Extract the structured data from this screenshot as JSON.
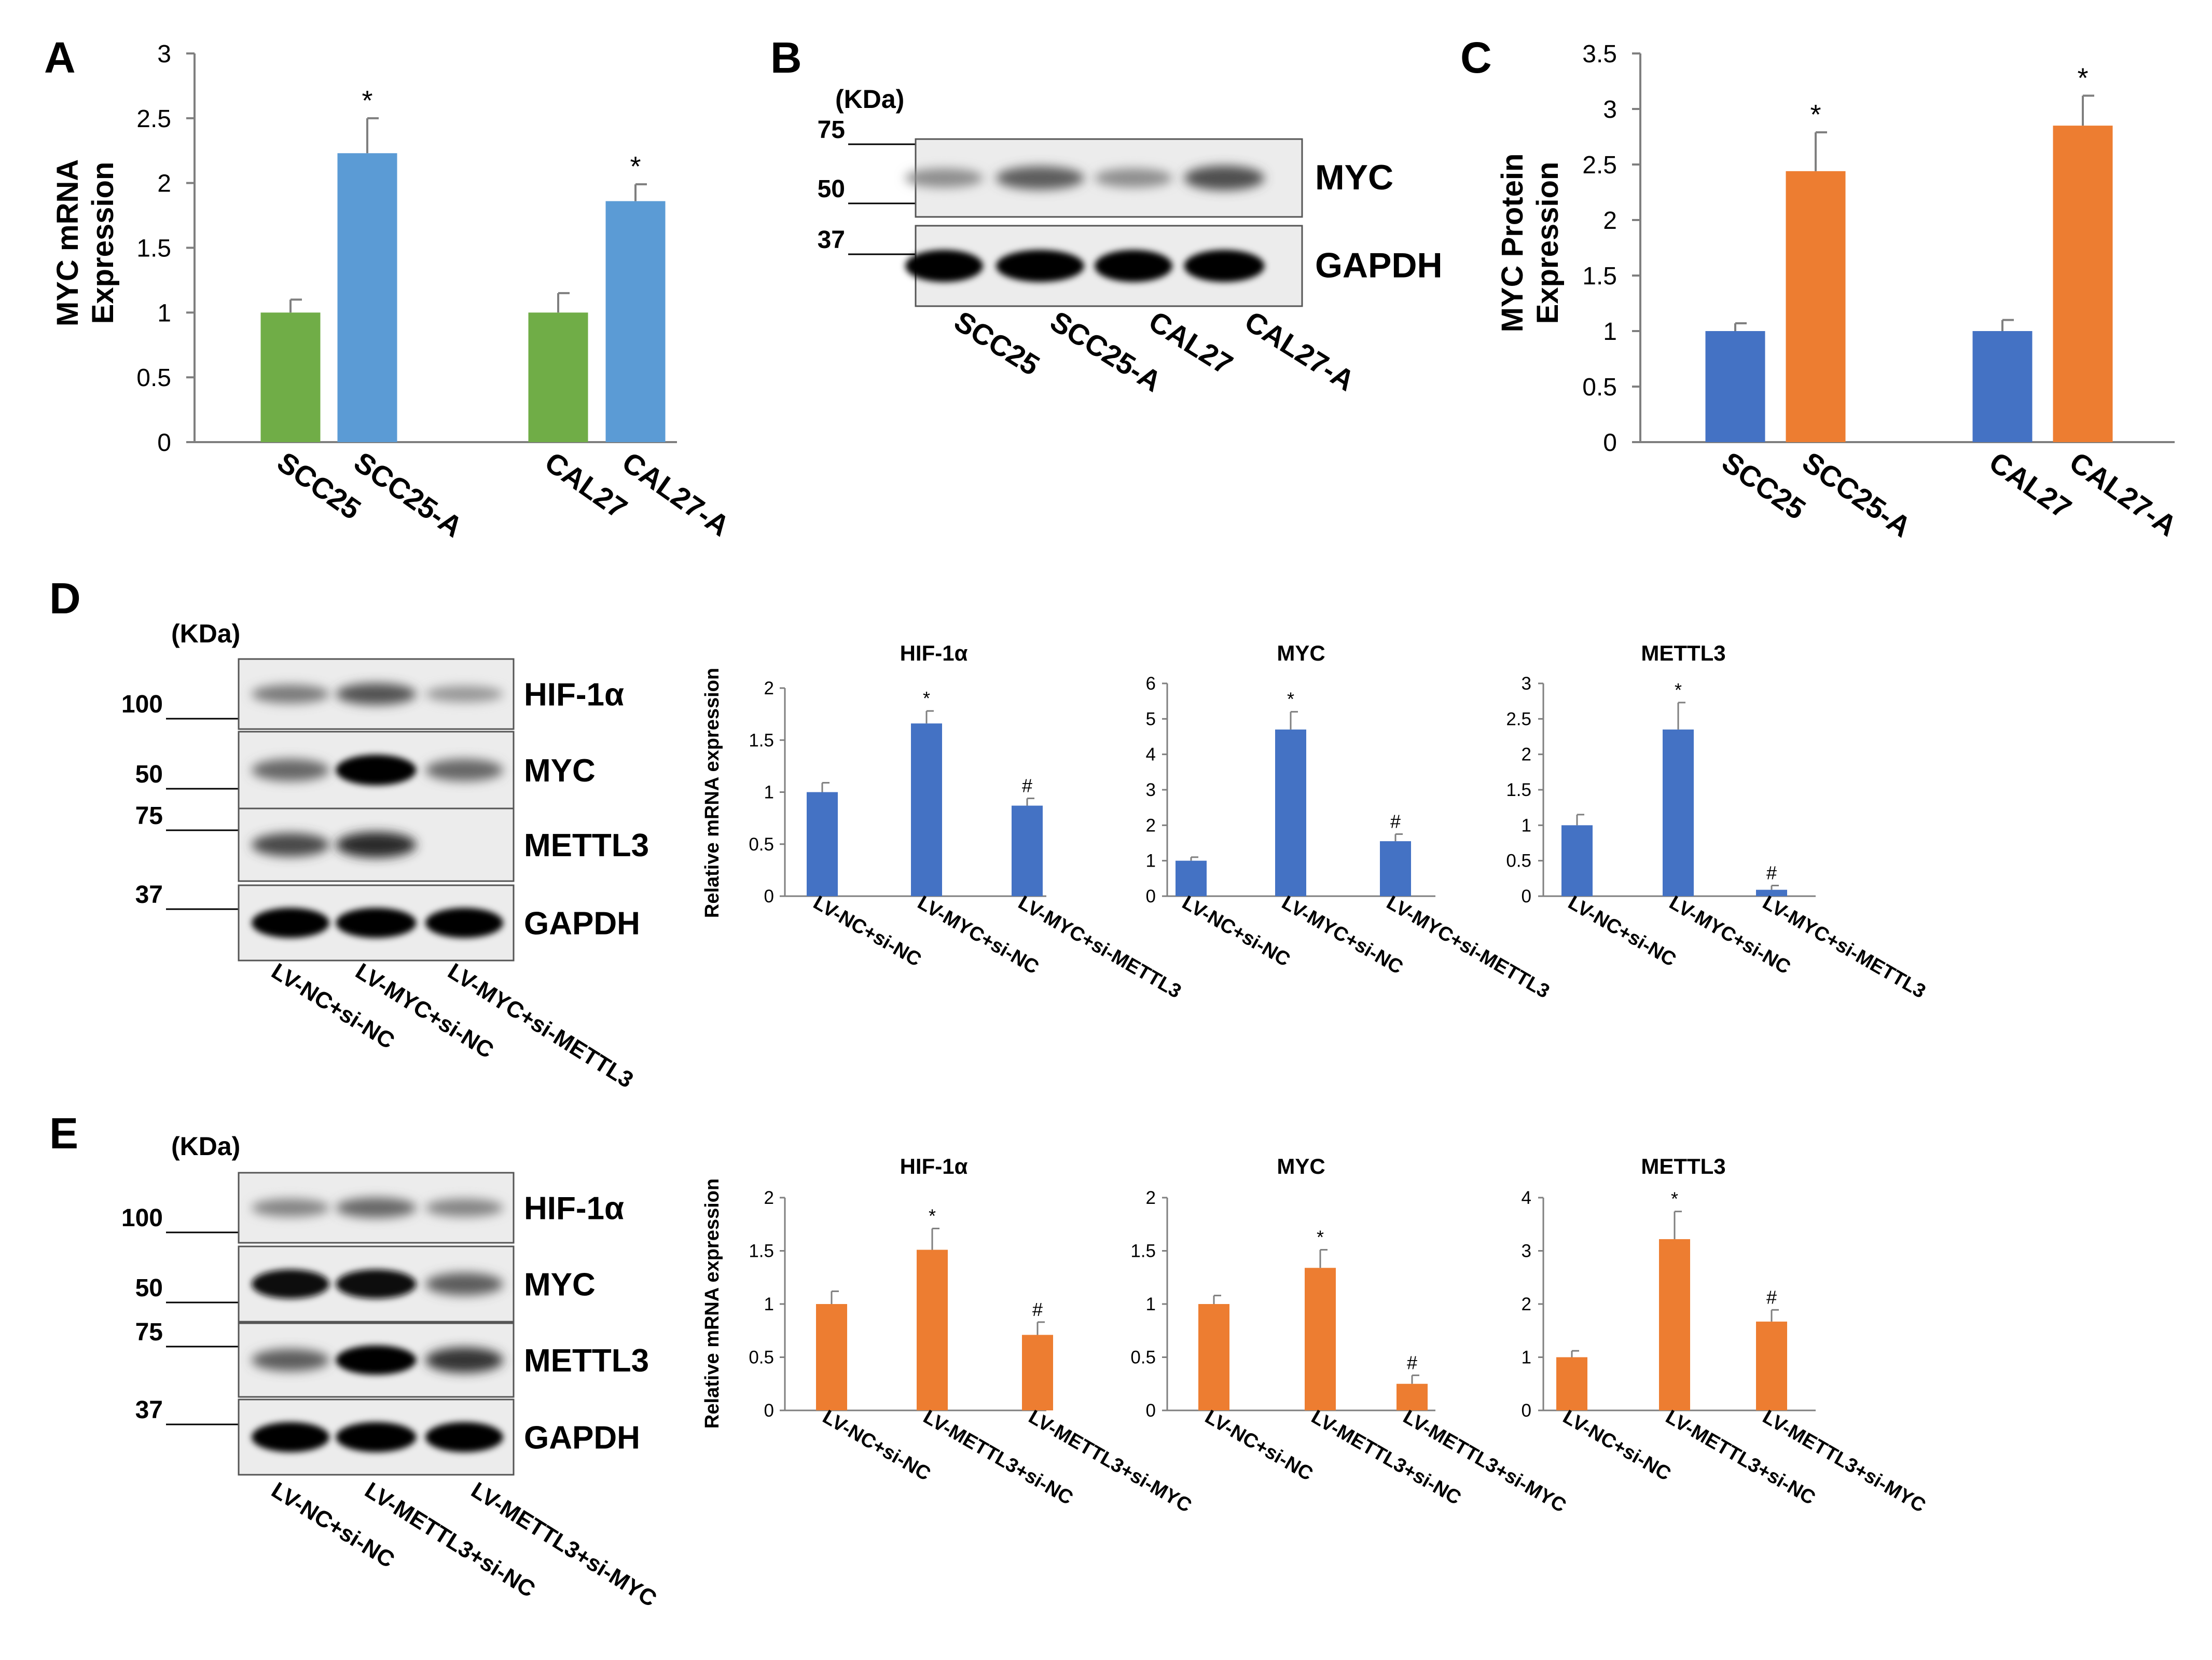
{
  "colors": {
    "green": "#70ad47",
    "light_blue": "#5b9bd5",
    "blue": "#4472c4",
    "orange": "#ed7d31",
    "axis": "#7f7f7f",
    "error_bar": "#7f7f7f"
  },
  "panel_labels": [
    "A",
    "B",
    "C",
    "D",
    "E"
  ],
  "chart_data": [
    {
      "id": "A",
      "type": "bar",
      "title": "",
      "ylabel": [
        "MYC mRNA",
        "Expression"
      ],
      "xlabel": "",
      "ylim": [
        0,
        3
      ],
      "yticks": [
        0,
        0.5,
        1,
        1.5,
        2,
        2.5,
        3
      ],
      "categories": [
        "SCC25",
        "SCC25-A",
        "CAL27",
        "CAL27-A"
      ],
      "values": [
        1.0,
        2.23,
        1.0,
        1.86
      ],
      "errors": [
        0.1,
        0.27,
        0.15,
        0.13
      ],
      "colors": [
        "#70ad47",
        "#5b9bd5",
        "#70ad47",
        "#5b9bd5"
      ],
      "marks": [
        "",
        "*",
        "",
        "*"
      ],
      "legend": "none",
      "grid": false
    },
    {
      "id": "C",
      "type": "bar",
      "title": "",
      "ylabel": [
        "MYC Protein",
        "Expression"
      ],
      "xlabel": "",
      "ylim": [
        0,
        3.5
      ],
      "yticks": [
        0,
        0.5,
        1,
        1.5,
        2,
        2.5,
        3,
        3.5
      ],
      "categories": [
        "SCC25",
        "SCC25-A",
        "CAL27",
        "CAL27-A"
      ],
      "values": [
        1.0,
        2.44,
        1.0,
        2.85
      ],
      "errors": [
        0.07,
        0.35,
        0.1,
        0.27
      ],
      "colors": [
        "#4472c4",
        "#ed7d31",
        "#4472c4",
        "#ed7d31"
      ],
      "marks": [
        "",
        "*",
        "",
        "*"
      ],
      "legend": "none",
      "grid": false
    },
    {
      "id": "D1",
      "type": "bar",
      "title": "HIF-1α",
      "ylabel": [
        "Relative mRNA expression"
      ],
      "ylim": [
        0,
        2
      ],
      "yticks": [
        0,
        0.5,
        1,
        1.5,
        2
      ],
      "categories": [
        "LV-NC+si-NC",
        "LV-MYC+si-NC",
        "LV-MYC+si-METTL3"
      ],
      "values": [
        1.0,
        1.66,
        0.87
      ],
      "errors": [
        0.09,
        0.12,
        0.07
      ],
      "colors": [
        "#4472c4",
        "#4472c4",
        "#4472c4"
      ],
      "marks": [
        "",
        "*",
        "#"
      ]
    },
    {
      "id": "D2",
      "type": "bar",
      "title": "MYC",
      "ylabel": [],
      "ylim": [
        0,
        6
      ],
      "yticks": [
        0,
        1,
        2,
        3,
        4,
        5,
        6
      ],
      "categories": [
        "LV-NC+si-NC",
        "LV-MYC+si-NC",
        "LV-MYC+si-METTL3"
      ],
      "values": [
        1.0,
        4.7,
        1.55
      ],
      "errors": [
        0.1,
        0.5,
        0.2
      ],
      "colors": [
        "#4472c4",
        "#4472c4",
        "#4472c4"
      ],
      "marks": [
        "",
        "*",
        "#"
      ]
    },
    {
      "id": "D3",
      "type": "bar",
      "title": "METTL3",
      "ylabel": [],
      "ylim": [
        0,
        3
      ],
      "yticks": [
        0,
        0.5,
        1,
        1.5,
        2,
        2.5,
        3
      ],
      "categories": [
        "LV-NC+si-NC",
        "LV-MYC+si-NC",
        "LV-MYC+si-METTL3"
      ],
      "values": [
        1.0,
        2.35,
        0.09
      ],
      "errors": [
        0.15,
        0.38,
        0.06
      ],
      "colors": [
        "#4472c4",
        "#4472c4",
        "#4472c4"
      ],
      "marks": [
        "",
        "*",
        "#"
      ]
    },
    {
      "id": "E1",
      "type": "bar",
      "title": "HIF-1α",
      "ylabel": [
        "Relative mRNA expression"
      ],
      "ylim": [
        0,
        2
      ],
      "yticks": [
        0,
        0.5,
        1,
        1.5,
        2
      ],
      "categories": [
        "LV-NC+si-NC",
        "LV-METTL3+si-NC",
        "LV-METTL3+si-MYC"
      ],
      "values": [
        1.0,
        1.51,
        0.71
      ],
      "errors": [
        0.12,
        0.2,
        0.12
      ],
      "colors": [
        "#ed7d31",
        "#ed7d31",
        "#ed7d31"
      ],
      "marks": [
        "",
        "*",
        "#"
      ]
    },
    {
      "id": "E2",
      "type": "bar",
      "title": "MYC",
      "ylabel": [],
      "ylim": [
        0,
        2
      ],
      "yticks": [
        0,
        0.5,
        1,
        1.5,
        2
      ],
      "categories": [
        "LV-NC+si-NC",
        "LV-METTL3+si-NC",
        "LV-METTL3+si-MYC"
      ],
      "values": [
        1.0,
        1.34,
        0.25
      ],
      "errors": [
        0.08,
        0.17,
        0.08
      ],
      "colors": [
        "#ed7d31",
        "#ed7d31",
        "#ed7d31"
      ],
      "marks": [
        "",
        "*",
        "#"
      ]
    },
    {
      "id": "E3",
      "type": "bar",
      "title": "METTL3",
      "ylabel": [],
      "ylim": [
        0,
        4
      ],
      "yticks": [
        0,
        1,
        2,
        3,
        4
      ],
      "categories": [
        "LV-NC+si-NC",
        "LV-METTL3+si-NC",
        "LV-METTL3+si-MYC"
      ],
      "values": [
        1.0,
        3.22,
        1.67
      ],
      "errors": [
        0.12,
        0.52,
        0.22
      ],
      "colors": [
        "#ed7d31",
        "#ed7d31",
        "#ed7d31"
      ],
      "marks": [
        "",
        "*",
        "#"
      ]
    }
  ],
  "blots": [
    {
      "id": "B",
      "unit": "(KDa)",
      "markers": [
        "75",
        "50",
        "37"
      ],
      "bands": [
        "MYC",
        "GAPDH"
      ],
      "lanes": [
        "SCC25",
        "SCC25-A",
        "CAL27",
        "CAL27-A"
      ],
      "intensity": [
        [
          0.3,
          0.55,
          0.3,
          0.62
        ],
        [
          1,
          1,
          1,
          1
        ]
      ]
    },
    {
      "id": "D",
      "unit": "(KDa)",
      "markers": [
        "100",
        "50",
        "75",
        "37"
      ],
      "bands": [
        "HIF-1α",
        "MYC",
        "METTL3",
        "GAPDH"
      ],
      "lanes": [
        "LV-NC+si-NC",
        "LV-MYC+si-NC",
        "LV-MYC+si-METTL3"
      ],
      "intensity": [
        [
          0.4,
          0.6,
          0.25
        ],
        [
          0.5,
          1,
          0.5
        ],
        [
          0.65,
          0.8,
          0
        ],
        [
          1,
          1,
          1
        ]
      ]
    },
    {
      "id": "E",
      "unit": "(KDa)",
      "markers": [
        "100",
        "50",
        "75",
        "37"
      ],
      "bands": [
        "HIF-1α",
        "MYC",
        "METTL3",
        "GAPDH"
      ],
      "lanes": [
        "LV-NC+si-NC",
        "LV-METTL3+si-NC",
        "LV-METTL3+si-MYC"
      ],
      "intensity": [
        [
          0.35,
          0.5,
          0.35
        ],
        [
          0.95,
          0.95,
          0.55
        ],
        [
          0.55,
          1,
          0.75
        ],
        [
          1,
          1,
          1
        ]
      ]
    }
  ]
}
